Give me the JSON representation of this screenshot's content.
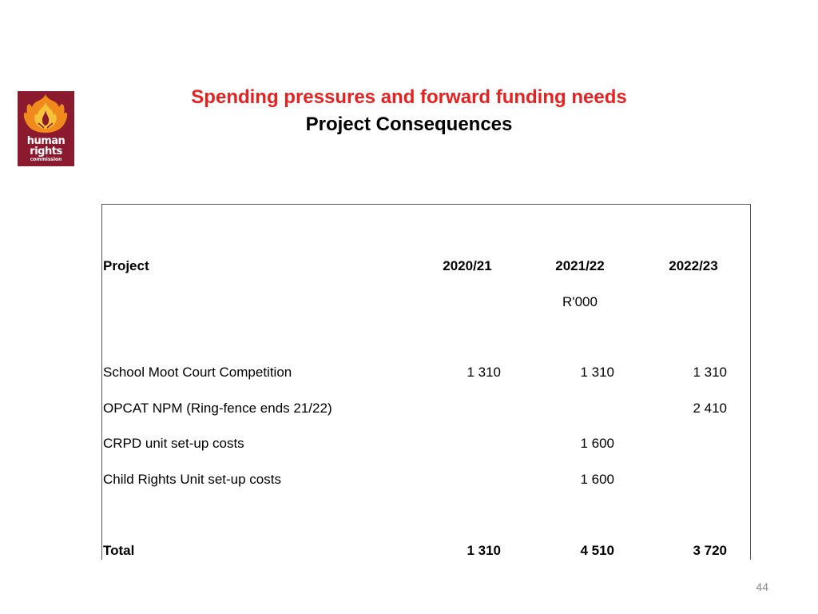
{
  "logo": {
    "line1": "human",
    "line2": "rights",
    "line3": "commission",
    "icon": "flame-icon",
    "colors": {
      "background": "#8b1a2e",
      "flame_outer": "#f08a1c",
      "flame_inner": "#f6c23a"
    }
  },
  "title": "Spending pressures and forward funding needs",
  "subtitle": "Project Consequences",
  "table": {
    "headers": {
      "project": "Project",
      "y1": "2020/21",
      "y2": "2021/22",
      "y3": "2022/23"
    },
    "unit": "R'000",
    "rows": [
      {
        "name": "School Moot Court Competition",
        "y1": "1 310",
        "y2": "1 310",
        "y3": "1 310"
      },
      {
        "name": "OPCAT NPM (Ring-fence ends 21/22)",
        "y1": "",
        "y2": "",
        "y3": "2 410"
      },
      {
        "name": "CRPD unit set-up costs",
        "y1": "",
        "y2": "1 600",
        "y3": ""
      },
      {
        "name": "Child Rights Unit set-up costs",
        "y1": "",
        "y2": "1 600",
        "y3": ""
      }
    ],
    "total": {
      "name": "Total",
      "y1": "1 310",
      "y2": "4 510",
      "y3": "3 720"
    }
  },
  "page_number": "44",
  "colors": {
    "title": "#e8201f",
    "text": "#000000",
    "page_number": "#8a8a8a"
  }
}
